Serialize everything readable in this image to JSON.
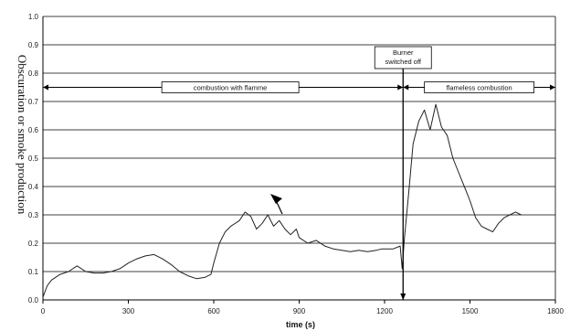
{
  "chart_data": {
    "type": "line",
    "title": "",
    "xlabel": "time (s)",
    "ylabel": "Obscuration or smoke production",
    "xlim": [
      0,
      1800
    ],
    "ylim": [
      0,
      1.0
    ],
    "xticks": [
      0,
      300,
      600,
      900,
      1200,
      1500,
      1800
    ],
    "yticks": [
      0.0,
      0.1,
      0.2,
      0.3,
      0.4,
      0.5,
      0.6,
      0.7,
      0.8,
      0.9,
      1.0
    ],
    "grid": "horizontal",
    "series": [
      {
        "name": "",
        "x": [
          0,
          15,
          30,
          60,
          90,
          120,
          150,
          180,
          210,
          240,
          270,
          300,
          330,
          360,
          390,
          420,
          450,
          480,
          510,
          540,
          570,
          590,
          600,
          620,
          640,
          660,
          690,
          710,
          730,
          750,
          770,
          790,
          810,
          830,
          850,
          870,
          890,
          900,
          930,
          960,
          990,
          1020,
          1050,
          1080,
          1110,
          1140,
          1170,
          1190,
          1200,
          1230,
          1255,
          1262,
          1270,
          1285,
          1300,
          1320,
          1340,
          1360,
          1380,
          1400,
          1420,
          1440,
          1460,
          1480,
          1500,
          1520,
          1540,
          1560,
          1580,
          1600,
          1620,
          1640,
          1660,
          1680
        ],
        "y": [
          0.01,
          0.05,
          0.07,
          0.09,
          0.1,
          0.12,
          0.1,
          0.095,
          0.095,
          0.1,
          0.11,
          0.13,
          0.145,
          0.155,
          0.16,
          0.145,
          0.125,
          0.1,
          0.085,
          0.075,
          0.08,
          0.09,
          0.13,
          0.2,
          0.24,
          0.26,
          0.28,
          0.31,
          0.295,
          0.25,
          0.27,
          0.3,
          0.26,
          0.28,
          0.25,
          0.23,
          0.25,
          0.22,
          0.2,
          0.21,
          0.19,
          0.18,
          0.175,
          0.17,
          0.175,
          0.17,
          0.175,
          0.18,
          0.18,
          0.18,
          0.19,
          0.11,
          0.22,
          0.38,
          0.55,
          0.63,
          0.67,
          0.6,
          0.69,
          0.61,
          0.58,
          0.5,
          0.45,
          0.4,
          0.35,
          0.29,
          0.26,
          0.25,
          0.24,
          0.27,
          0.29,
          0.3,
          0.31,
          0.3
        ]
      }
    ],
    "annotations": {
      "burner": "Burner\nswitched off",
      "phase1": "combustion with flamme",
      "phase2": "flameless combustion",
      "event_x": 1265,
      "phase1_range": [
        0,
        1265
      ],
      "phase2_range": [
        1265,
        1800
      ],
      "band_y": 0.75
    }
  }
}
